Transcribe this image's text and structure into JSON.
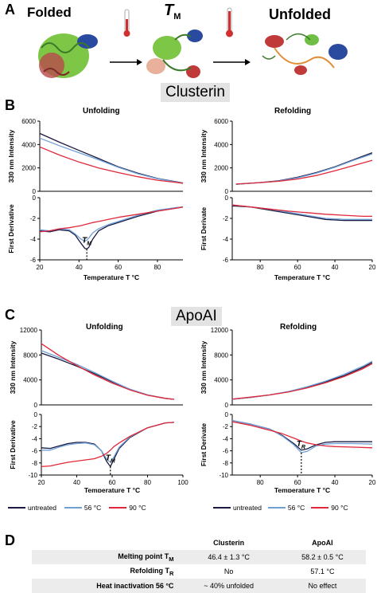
{
  "panel_labels": {
    "a": "A",
    "b": "B",
    "c": "C",
    "d": "D"
  },
  "top_banner": {
    "folded": "Folded",
    "tm": "T",
    "tm_sub": "M",
    "unfolded": "Unfolded"
  },
  "sections": {
    "clusterin": "Clusterin",
    "apoai": "ApoAI"
  },
  "colors": {
    "untreated": "#1a1a40",
    "c56": "#6fa0d8",
    "c90": "#e0283a"
  },
  "legend": {
    "untreated": "untreated",
    "c56": "56 °C",
    "c90": "90 °C"
  },
  "chart_data": [
    {
      "id": "clusterin-unfolding",
      "type": "line",
      "title": "Unfolding",
      "top": {
        "ylabel": "330 nm Intensity",
        "ylim": [
          0,
          6000
        ],
        "yticks": [
          "0",
          "2000",
          "4000",
          "6000"
        ],
        "x": [
          20,
          30,
          40,
          50,
          60,
          70,
          80,
          90,
          93
        ],
        "series": [
          {
            "key": "untreated",
            "values": [
              4950,
              4200,
              3500,
              2800,
              2100,
              1550,
              1100,
              800,
              700
            ]
          },
          {
            "key": "c56",
            "values": [
              4550,
              3900,
              3300,
              2700,
              2050,
              1500,
              1080,
              780,
              690
            ]
          },
          {
            "key": "c90",
            "values": [
              3800,
              3100,
              2500,
              2000,
              1600,
              1250,
              950,
              750,
              680
            ]
          }
        ]
      },
      "bottom": {
        "ylabel": "First Derivative",
        "ylim": [
          -6,
          0
        ],
        "yticks": [
          "0",
          "-2",
          "-4",
          "-6"
        ],
        "xlabel": "Temperature T °C",
        "xlim": [
          20,
          93
        ],
        "xticks": [
          "20",
          "40",
          "60",
          "80"
        ],
        "annotation": {
          "text": "T",
          "sub": "M",
          "x": 44
        },
        "x": [
          20,
          25,
          30,
          35,
          38,
          41,
          43,
          44,
          45,
          47,
          50,
          55,
          60,
          70,
          80,
          90,
          93
        ],
        "series": [
          {
            "key": "untreated",
            "values": [
              -3.2,
              -3.3,
              -3.1,
              -3.2,
              -3.6,
              -4.4,
              -4.9,
              -4.95,
              -4.8,
              -4.0,
              -3.2,
              -2.7,
              -2.4,
              -1.8,
              -1.3,
              -1.0,
              -0.9
            ]
          },
          {
            "key": "c56",
            "values": [
              -3.1,
              -3.2,
              -3.0,
              -3.1,
              -3.5,
              -4.0,
              -4.2,
              -4.1,
              -3.9,
              -3.4,
              -3.0,
              -2.6,
              -2.3,
              -1.7,
              -1.2,
              -0.95,
              -0.9
            ]
          },
          {
            "key": "c90",
            "values": [
              -3.3,
              -3.2,
              -3.0,
              -2.9,
              -2.8,
              -2.7,
              -2.6,
              -2.55,
              -2.5,
              -2.4,
              -2.3,
              -2.1,
              -1.9,
              -1.6,
              -1.3,
              -1.0,
              -0.9
            ]
          }
        ]
      }
    },
    {
      "id": "clusterin-refolding",
      "type": "line",
      "title": "Refolding",
      "top": {
        "ylabel": "330 nm Intensity",
        "ylim": [
          0,
          6000
        ],
        "yticks": [
          "0",
          "2000",
          "4000",
          "6000"
        ],
        "x": [
          93,
          80,
          70,
          60,
          50,
          40,
          30,
          20
        ],
        "series": [
          {
            "key": "untreated",
            "values": [
              600,
              750,
              900,
              1200,
              1600,
              2100,
              2700,
              3300
            ]
          },
          {
            "key": "c56",
            "values": [
              600,
              740,
              880,
              1150,
              1550,
              2050,
              2650,
              3200
            ]
          },
          {
            "key": "c90",
            "values": [
              620,
              740,
              860,
              1050,
              1350,
              1750,
              2200,
              2650
            ]
          }
        ]
      },
      "bottom": {
        "ylabel": "First Derivate",
        "ylim": [
          -6,
          0
        ],
        "yticks": [
          "0",
          "-2",
          "-4",
          "-6"
        ],
        "xlabel": "Temperature T °C",
        "xlim": [
          95,
          20
        ],
        "xticks": [
          "80",
          "60",
          "40",
          "20"
        ],
        "x": [
          95,
          85,
          75,
          65,
          55,
          45,
          35,
          25,
          20
        ],
        "series": [
          {
            "key": "untreated",
            "values": [
              -0.8,
              -0.9,
              -1.2,
              -1.5,
              -1.8,
              -2.1,
              -2.2,
              -2.2,
              -2.2
            ]
          },
          {
            "key": "c56",
            "values": [
              -0.7,
              -0.9,
              -1.1,
              -1.4,
              -1.7,
              -2.0,
              -2.1,
              -2.1,
              -2.1
            ]
          },
          {
            "key": "c90",
            "values": [
              -0.7,
              -0.9,
              -1.1,
              -1.3,
              -1.45,
              -1.6,
              -1.7,
              -1.8,
              -1.8
            ]
          }
        ]
      }
    },
    {
      "id": "apoai-unfolding",
      "type": "line",
      "title": "Unfolding",
      "top": {
        "ylabel": "330 nm Intensity",
        "ylim": [
          0,
          12000
        ],
        "yticks": [
          "0",
          "4000",
          "8000",
          "12000"
        ],
        "x": [
          20,
          30,
          40,
          50,
          60,
          70,
          80,
          90,
          95
        ],
        "series": [
          {
            "key": "untreated",
            "values": [
              8300,
              7300,
              6200,
              5000,
              3700,
              2500,
              1600,
              1050,
              900
            ]
          },
          {
            "key": "c56",
            "values": [
              8700,
              7600,
              6500,
              5200,
              3800,
              2500,
              1600,
              1050,
              900
            ]
          },
          {
            "key": "c90",
            "values": [
              9800,
              7900,
              6300,
              4800,
              3500,
              2400,
              1550,
              1050,
              900
            ]
          }
        ]
      },
      "bottom": {
        "ylabel": "First Derivative",
        "ylim": [
          -10,
          0
        ],
        "yticks": [
          "0",
          "-2",
          "-4",
          "-6",
          "-8",
          "-10"
        ],
        "xlabel": "Temperature T °C",
        "xlim": [
          20,
          100
        ],
        "xticks": [
          "20",
          "40",
          "60",
          "80",
          "100"
        ],
        "annotation": {
          "text": "T",
          "sub": "M",
          "x": 59
        },
        "x": [
          20,
          25,
          30,
          35,
          40,
          45,
          50,
          54,
          57,
          59,
          61,
          64,
          70,
          80,
          90,
          95
        ],
        "series": [
          {
            "key": "untreated",
            "values": [
              -5.5,
              -5.6,
              -5.2,
              -4.8,
              -4.6,
              -4.6,
              -4.9,
              -6.0,
              -7.8,
              -8.6,
              -7.4,
              -5.6,
              -3.8,
              -2.2,
              -1.4,
              -1.3
            ]
          },
          {
            "key": "c56",
            "values": [
              -5.9,
              -5.9,
              -5.4,
              -5.0,
              -4.8,
              -4.7,
              -5.0,
              -6.0,
              -7.4,
              -7.9,
              -7.0,
              -5.4,
              -3.7,
              -2.2,
              -1.4,
              -1.3
            ]
          },
          {
            "key": "c90",
            "values": [
              -8.6,
              -8.5,
              -8.2,
              -7.9,
              -7.7,
              -7.5,
              -7.3,
              -6.9,
              -6.4,
              -5.9,
              -5.3,
              -4.7,
              -3.6,
              -2.2,
              -1.4,
              -1.3
            ]
          }
        ]
      }
    },
    {
      "id": "apoai-refolding",
      "type": "line",
      "title": "Refolding",
      "top": {
        "ylabel": "330 nm Intensity",
        "ylim": [
          0,
          12000
        ],
        "yticks": [
          "0",
          "4000",
          "8000",
          "12000"
        ],
        "x": [
          95,
          85,
          75,
          65,
          55,
          45,
          35,
          25,
          20
        ],
        "series": [
          {
            "key": "untreated",
            "values": [
              900,
              1200,
              1600,
              2100,
              2800,
              3700,
              4700,
              6000,
              6800
            ]
          },
          {
            "key": "c56",
            "values": [
              900,
              1200,
              1600,
              2150,
              2900,
              3800,
              4900,
              6200,
              7000
            ]
          },
          {
            "key": "c90",
            "values": [
              950,
              1250,
              1600,
              2050,
              2700,
              3550,
              4550,
              5800,
              6600
            ]
          }
        ]
      },
      "bottom": {
        "ylabel": "First Derivate",
        "ylim": [
          -10,
          0
        ],
        "yticks": [
          "0",
          "-2",
          "-4",
          "-6",
          "-8",
          "-10"
        ],
        "xlabel": "Temperature T °C",
        "xlim": [
          95,
          20
        ],
        "xticks": [
          "80",
          "60",
          "40",
          "20"
        ],
        "annotation": {
          "text": "T",
          "sub": "R",
          "x": 58
        },
        "x": [
          95,
          85,
          75,
          68,
          62,
          58,
          55,
          50,
          45,
          40,
          30,
          20
        ],
        "series": [
          {
            "key": "untreated",
            "values": [
              -1.0,
              -1.6,
              -2.4,
              -3.5,
              -4.8,
              -5.9,
              -5.7,
              -5.0,
              -4.6,
              -4.5,
              -4.5,
              -4.5
            ]
          },
          {
            "key": "c56",
            "values": [
              -1.0,
              -1.6,
              -2.4,
              -3.6,
              -5.0,
              -6.3,
              -6.1,
              -5.2,
              -4.9,
              -4.8,
              -4.8,
              -4.9
            ]
          },
          {
            "key": "c90",
            "values": [
              -1.2,
              -1.8,
              -2.6,
              -3.2,
              -3.9,
              -4.4,
              -4.7,
              -5.0,
              -5.2,
              -5.3,
              -5.4,
              -5.5
            ]
          }
        ]
      }
    }
  ],
  "table": {
    "headers": [
      "",
      "Clusterin",
      "ApoAI"
    ],
    "rows": [
      {
        "label": "Melting point T",
        "label_sub": "M",
        "clusterin": "46.4 ± 1.3 °C",
        "apoai": "58.2 ± 0.5  °C"
      },
      {
        "label": "Refolding T",
        "label_sub": "R",
        "clusterin": "No",
        "apoai": "57.1 °C"
      },
      {
        "label": "Heat inactivation 56 °C",
        "label_sub": "",
        "clusterin": "~ 40% unfolded",
        "apoai": "No effect"
      }
    ]
  }
}
